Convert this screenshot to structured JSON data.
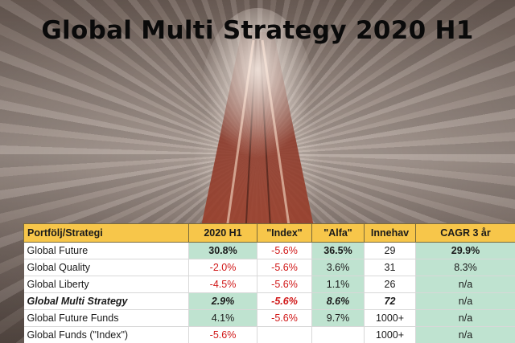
{
  "page": {
    "title": "Global Multi Strategy 2020 H1"
  },
  "table": {
    "headers": [
      "Portfölj/Strategi",
      "2020 H1",
      "\"Index\"",
      "\"Alfa\"",
      "Innehav",
      "CAGR 3 år"
    ],
    "rows": [
      {
        "cells": [
          {
            "text": "Global Future"
          },
          {
            "text": "30.8%",
            "bg": "green",
            "bold": true
          },
          {
            "text": "-5.6%",
            "neg": true
          },
          {
            "text": "36.5%",
            "bg": "green",
            "bold": true
          },
          {
            "text": "29"
          },
          {
            "text": "29.9%",
            "bg": "green",
            "bold": true
          }
        ]
      },
      {
        "cells": [
          {
            "text": "Global Quality"
          },
          {
            "text": "-2.0%",
            "neg": true
          },
          {
            "text": "-5.6%",
            "neg": true
          },
          {
            "text": "3.6%",
            "bg": "green"
          },
          {
            "text": "31"
          },
          {
            "text": "8.3%",
            "bg": "green"
          }
        ]
      },
      {
        "cells": [
          {
            "text": "Global Liberty"
          },
          {
            "text": "-4.5%",
            "neg": true
          },
          {
            "text": "-5.6%",
            "neg": true
          },
          {
            "text": "1.1%",
            "bg": "green"
          },
          {
            "text": "26"
          },
          {
            "text": "n/a",
            "bg": "green"
          }
        ]
      },
      {
        "highlight": true,
        "cells": [
          {
            "text": "Global Multi Strategy"
          },
          {
            "text": "2.9%",
            "bg": "green"
          },
          {
            "text": "-5.6%",
            "neg": true
          },
          {
            "text": "8.6%",
            "bg": "green"
          },
          {
            "text": "72"
          },
          {
            "text": "n/a",
            "bg": "green",
            "plain": true
          }
        ]
      },
      {
        "cells": [
          {
            "text": "Global Future Funds"
          },
          {
            "text": "4.1%",
            "bg": "green"
          },
          {
            "text": "-5.6%",
            "neg": true
          },
          {
            "text": "9.7%",
            "bg": "green"
          },
          {
            "text": "1000+"
          },
          {
            "text": "n/a",
            "bg": "green"
          }
        ]
      },
      {
        "cells": [
          {
            "text": "Global Funds (\"Index\")"
          },
          {
            "text": "-5.6%",
            "neg": true
          },
          {
            "text": ""
          },
          {
            "text": ""
          },
          {
            "text": "1000+"
          },
          {
            "text": "n/a",
            "bg": "green"
          }
        ]
      }
    ]
  },
  "colors": {
    "header_bg": "#f7c64a",
    "positive_bg": "#bfe3d0",
    "negative_text": "#d11818"
  }
}
